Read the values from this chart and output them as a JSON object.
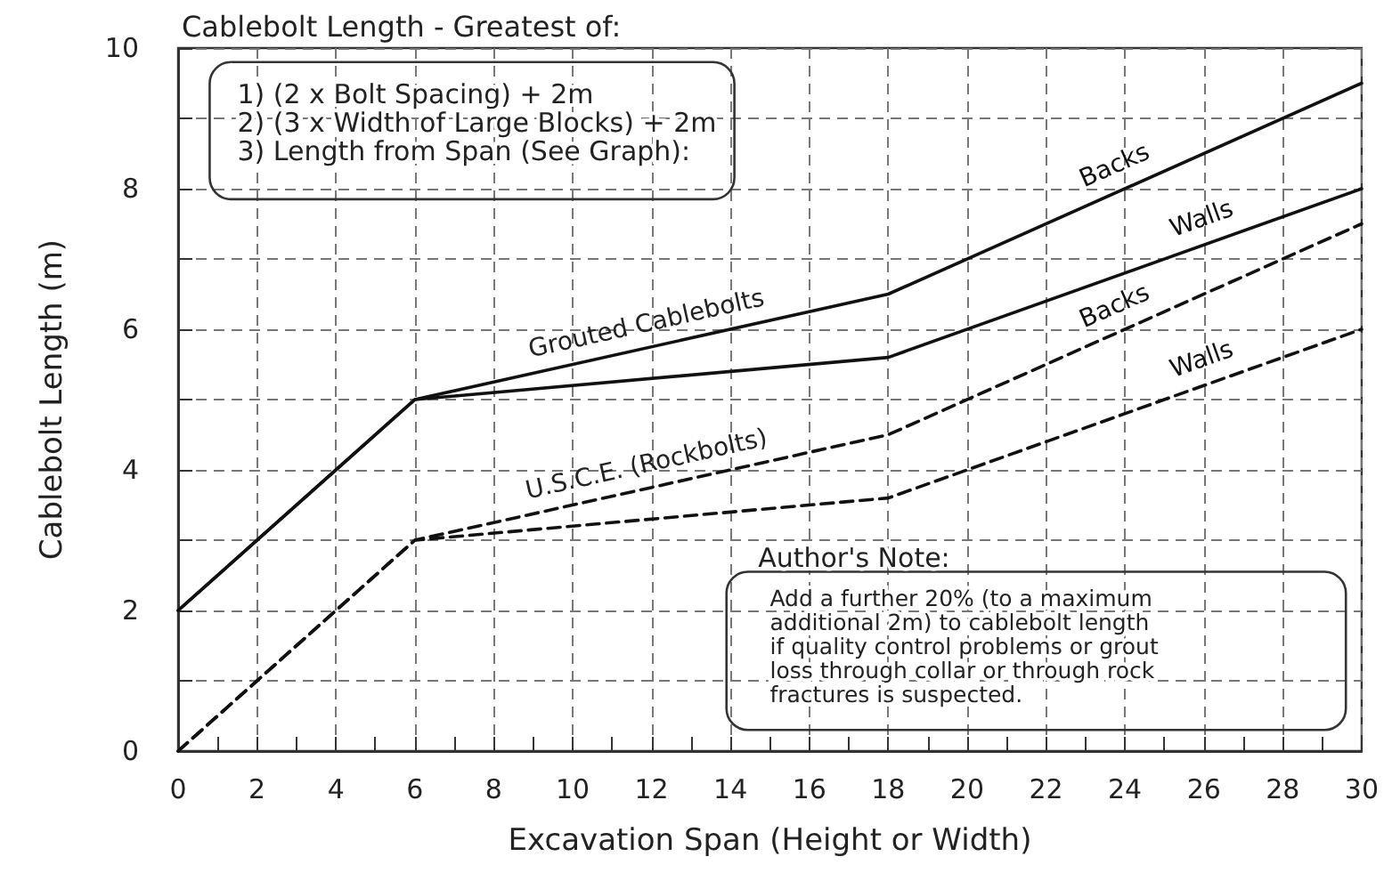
{
  "chart_data": {
    "type": "line",
    "title": "Cablebolt Length - Greatest of:",
    "xlabel": "Excavation Span (Height or Width)",
    "ylabel": "Cablebolt Length (m)",
    "x": [
      0,
      6,
      18,
      30
    ],
    "series": [
      {
        "name": "Backs",
        "color": "#111111",
        "line_style": "solid",
        "values": [
          2,
          5,
          6.5,
          9.5
        ]
      },
      {
        "name": "Walls",
        "color": "#111111",
        "line_style": "solid",
        "values": [
          2,
          5,
          5.6,
          8
        ]
      },
      {
        "name": "Backs",
        "color": "#111111",
        "line_style": "dashed",
        "values": [
          0,
          3,
          4.5,
          7.5
        ]
      },
      {
        "name": "Walls",
        "color": "#111111",
        "line_style": "dashed",
        "values": [
          0,
          3,
          3.6,
          6
        ]
      }
    ],
    "annotations": [
      {
        "text": "Grouted Cablebolts",
        "x": 12,
        "y": 5.75
      },
      {
        "text": "U.S.C.E. (Rockbolts)",
        "x": 12,
        "y": 3.75
      },
      "1) (2 x Bolt Spacing) + 2m\n2) (3 x Width of Large Blocks) + 2m\n3) Length from Span (See Graph):",
      "Author's Note:",
      "Add a further 20% (to a maximum\nadditional 2m) to cablebolt length\nif quality control problems or grout\nloss through collar or through rock\nfractures is suspected."
    ],
    "xlim": [
      0,
      30
    ],
    "xticks": [
      0,
      2,
      4,
      6,
      8,
      10,
      12,
      14,
      16,
      18,
      20,
      22,
      24,
      26,
      28,
      30
    ],
    "ylim": [
      0,
      10
    ],
    "yticks": [
      0,
      2,
      4,
      6,
      8,
      10
    ],
    "grid": true,
    "legend": false,
    "marker": "none"
  }
}
